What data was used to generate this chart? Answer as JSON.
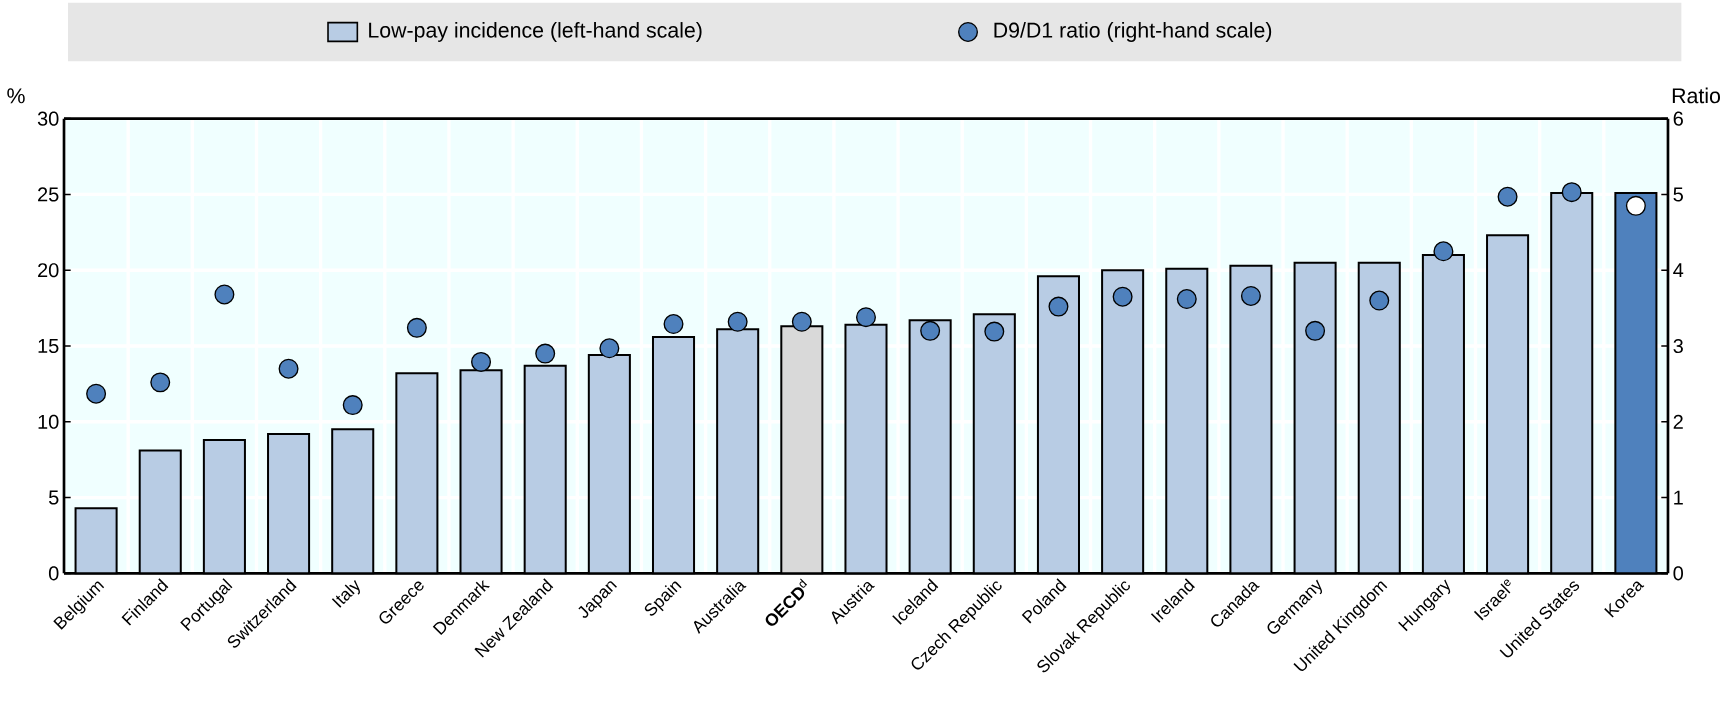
{
  "chart_data": {
    "type": "bar",
    "ylabel": "%",
    "y2label": "Ratio",
    "categories": [
      "Belgium",
      "Finland",
      "Portugal",
      "Switzerland",
      "Italy",
      "Greece",
      "Denmark",
      "New Zealand",
      "Japan",
      "Spain",
      "Australia",
      "**OECD**$^{d}$",
      "Austria",
      "Iceland",
      "Czech Republic",
      "Poland",
      "Slovak Republic",
      "Ireland",
      "Canada",
      "Germany",
      "United Kingdom",
      "Hungary",
      "Israel$^{e}$",
      "United States",
      "Korea"
    ],
    "series": [
      {
        "name": "Low-pay incidence (left-hand scale)",
        "color": "#b8cce4",
        "colors": [
          "#b8cce4",
          "#b8cce4",
          "#b8cce4",
          "#b8cce4",
          "#b8cce4",
          "#b8cce4",
          "#b8cce4",
          "#b8cce4",
          "#b8cce4",
          "#b8cce4",
          "#b8cce4",
          "#d9d9d9",
          "#b8cce4",
          "#b8cce4",
          "#b8cce4",
          "#b8cce4",
          "#b8cce4",
          "#b8cce4",
          "#b8cce4",
          "#b8cce4",
          "#b8cce4",
          "#b8cce4",
          "#b8cce4",
          "#b8cce4",
          "#4f81bd"
        ],
        "values": [
          4.3,
          8.1,
          8.8,
          9.2,
          9.5,
          13.2,
          13.4,
          13.7,
          14.4,
          15.6,
          16.1,
          16.3,
          16.4,
          16.7,
          17.1,
          19.6,
          20.0,
          20.1,
          20.3,
          20.5,
          20.5,
          21.0,
          22.3,
          25.1,
          25.1
        ]
      },
      {
        "name": "D9/D1 ratio (right-hand scale)",
        "type": "scatter",
        "axis": "y2",
        "color": "#4f81bd",
        "colors": [
          "#4f81bd",
          "#4f81bd",
          "#4f81bd",
          "#4f81bd",
          "#4f81bd",
          "#4f81bd",
          "#4f81bd",
          "#4f81bd",
          "#4f81bd",
          "#4f81bd",
          "#4f81bd",
          "#4f81bd",
          "#4f81bd",
          "#4f81bd",
          "#4f81bd",
          "#4f81bd",
          "#4f81bd",
          "#4f81bd",
          "#4f81bd",
          "#4f81bd",
          "#4f81bd",
          "#4f81bd",
          "#4f81bd",
          "#4f81bd",
          "#ffffff"
        ],
        "values": [
          2.37,
          2.52,
          3.68,
          2.7,
          2.22,
          3.24,
          2.79,
          2.9,
          2.97,
          3.29,
          3.32,
          3.32,
          3.38,
          3.2,
          3.19,
          3.52,
          3.65,
          3.62,
          3.66,
          3.2,
          3.6,
          4.25,
          4.97,
          5.03,
          4.85
        ]
      }
    ],
    "ylim": [
      0,
      30
    ],
    "yticks": [
      0,
      5,
      10,
      15,
      20,
      25,
      30
    ],
    "y2lim": [
      0,
      6
    ],
    "y2ticks": [
      0,
      1,
      2,
      3,
      4,
      5,
      6
    ],
    "grid": true,
    "legend": "top",
    "marker": "circle"
  }
}
